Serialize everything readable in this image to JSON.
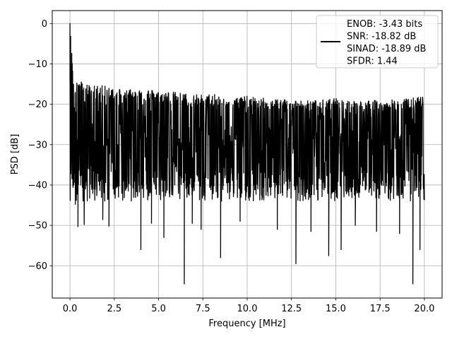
{
  "chart_data": {
    "type": "line",
    "title": "",
    "xlabel": "Frequency [MHz]",
    "ylabel": "PSD [dB]",
    "xlim": [
      -1.0,
      21.0
    ],
    "ylim": [
      -68.0,
      3.2
    ],
    "xticks": [
      0.0,
      2.5,
      5.0,
      7.5,
      10.0,
      12.5,
      15.0,
      17.5,
      20.0
    ],
    "xtick_labels": [
      "0.0",
      "2.5",
      "5.0",
      "7.5",
      "10.0",
      "12.5",
      "15.0",
      "17.5",
      "20.0"
    ],
    "yticks": [
      0,
      -10,
      -20,
      -30,
      -40,
      -50,
      -60
    ],
    "ytick_labels": [
      "0",
      "−10",
      "−20",
      "−30",
      "−40",
      "−50",
      "−60"
    ],
    "grid": true,
    "legend_position": "top-right",
    "series": [
      {
        "name": "ENOB: -3.43 bits\nSNR: -18.82 dB\nSINAD: -18.89 dB\nSFDR: 1.44",
        "color": "#000000",
        "x_start": 0.0,
        "x_end": 20.0,
        "peak": {
          "x": 0.0,
          "y": 0.0
        },
        "upper_envelope": [
          [
            0.0,
            0.0
          ],
          [
            0.2,
            -12.5
          ],
          [
            0.5,
            -13.5
          ],
          [
            1.0,
            -14.5
          ],
          [
            2.0,
            -15.0
          ],
          [
            3.0,
            -15.5
          ],
          [
            4.0,
            -15.5
          ],
          [
            5.0,
            -16.0
          ],
          [
            6.0,
            -16.5
          ],
          [
            7.0,
            -17.0
          ],
          [
            8.0,
            -17.0
          ],
          [
            9.0,
            -17.5
          ],
          [
            10.0,
            -17.5
          ],
          [
            11.0,
            -18.0
          ],
          [
            12.0,
            -18.0
          ],
          [
            13.0,
            -18.5
          ],
          [
            14.0,
            -18.5
          ],
          [
            15.0,
            -18.0
          ],
          [
            16.0,
            -18.5
          ],
          [
            17.0,
            -18.5
          ],
          [
            18.0,
            -18.5
          ],
          [
            19.0,
            -18.0
          ],
          [
            20.0,
            -17.5
          ]
        ],
        "typical_low": -44.0,
        "notable_minima": [
          {
            "x": 0.3,
            "y": -44.8
          },
          {
            "x": 0.45,
            "y": -50.3
          },
          {
            "x": 0.8,
            "y": -49.8
          },
          {
            "x": 1.85,
            "y": -48.6
          },
          {
            "x": 2.2,
            "y": -50.2
          },
          {
            "x": 4.0,
            "y": -56.0
          },
          {
            "x": 4.6,
            "y": -49.5
          },
          {
            "x": 5.3,
            "y": -53.0
          },
          {
            "x": 6.45,
            "y": -64.5
          },
          {
            "x": 6.9,
            "y": -49.5
          },
          {
            "x": 7.4,
            "y": -51.0
          },
          {
            "x": 8.5,
            "y": -58.0
          },
          {
            "x": 9.6,
            "y": -49.0
          },
          {
            "x": 11.7,
            "y": -51.0
          },
          {
            "x": 12.75,
            "y": -59.5
          },
          {
            "x": 13.6,
            "y": -51.5
          },
          {
            "x": 14.6,
            "y": -57.5
          },
          {
            "x": 15.3,
            "y": -56.0
          },
          {
            "x": 16.1,
            "y": -50.0
          },
          {
            "x": 17.3,
            "y": -51.5
          },
          {
            "x": 18.6,
            "y": -52.0
          },
          {
            "x": 19.35,
            "y": -64.5
          },
          {
            "x": 19.75,
            "y": -56.0
          }
        ]
      }
    ]
  }
}
